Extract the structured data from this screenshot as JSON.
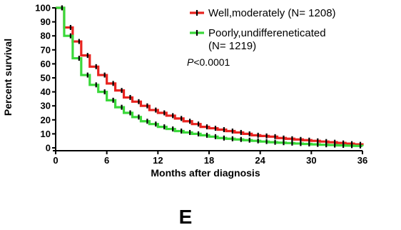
{
  "chart_data": {
    "type": "line",
    "step": true,
    "title": "",
    "xlabel": "Months after diagnosis",
    "ylabel": "Percent survival",
    "xlim": [
      0,
      36
    ],
    "ylim": [
      0,
      100
    ],
    "xticks": [
      0,
      6,
      12,
      18,
      24,
      30,
      36
    ],
    "yticks": [
      0,
      10,
      20,
      30,
      40,
      50,
      60,
      70,
      80,
      90,
      100
    ],
    "x": [
      0,
      1,
      2,
      3,
      4,
      5,
      6,
      7,
      8,
      9,
      10,
      11,
      12,
      13,
      14,
      15,
      16,
      17,
      18,
      19,
      20,
      21,
      22,
      23,
      24,
      25,
      26,
      27,
      28,
      29,
      30,
      31,
      32,
      33,
      34,
      35,
      36
    ],
    "series": [
      {
        "name": "Well,moderately (N= 1208)",
        "color": "#e8231f",
        "values": [
          100,
          86,
          76,
          66,
          58,
          52,
          46,
          41,
          36,
          33,
          30,
          27,
          25,
          23,
          21,
          19,
          17,
          15,
          14,
          13,
          12,
          11,
          10,
          9,
          8.5,
          8,
          7,
          6.5,
          6,
          5.5,
          5,
          4.5,
          4,
          3.5,
          3,
          2.5,
          2
        ]
      },
      {
        "name": "Poorly,undiffereneticated (N= 1219)",
        "name_line1": "Poorly,undiffereneticated",
        "name_line2": "(N= 1219)",
        "color": "#3ad83a",
        "values": [
          100,
          80,
          64,
          52,
          45,
          40,
          34,
          29,
          25,
          22,
          19,
          17,
          15,
          13.5,
          12,
          11,
          10,
          9,
          8,
          7,
          6.5,
          6,
          5.5,
          5,
          4.5,
          4,
          3.7,
          3.4,
          3.1,
          2.8,
          2.5,
          2.2,
          2,
          1.8,
          1.6,
          1.4,
          1.2
        ]
      }
    ],
    "annotation": {
      "prefix": "P",
      "rest": "<0.0001"
    },
    "legend_position": "top-right",
    "grid": false
  },
  "panel_label": "E"
}
